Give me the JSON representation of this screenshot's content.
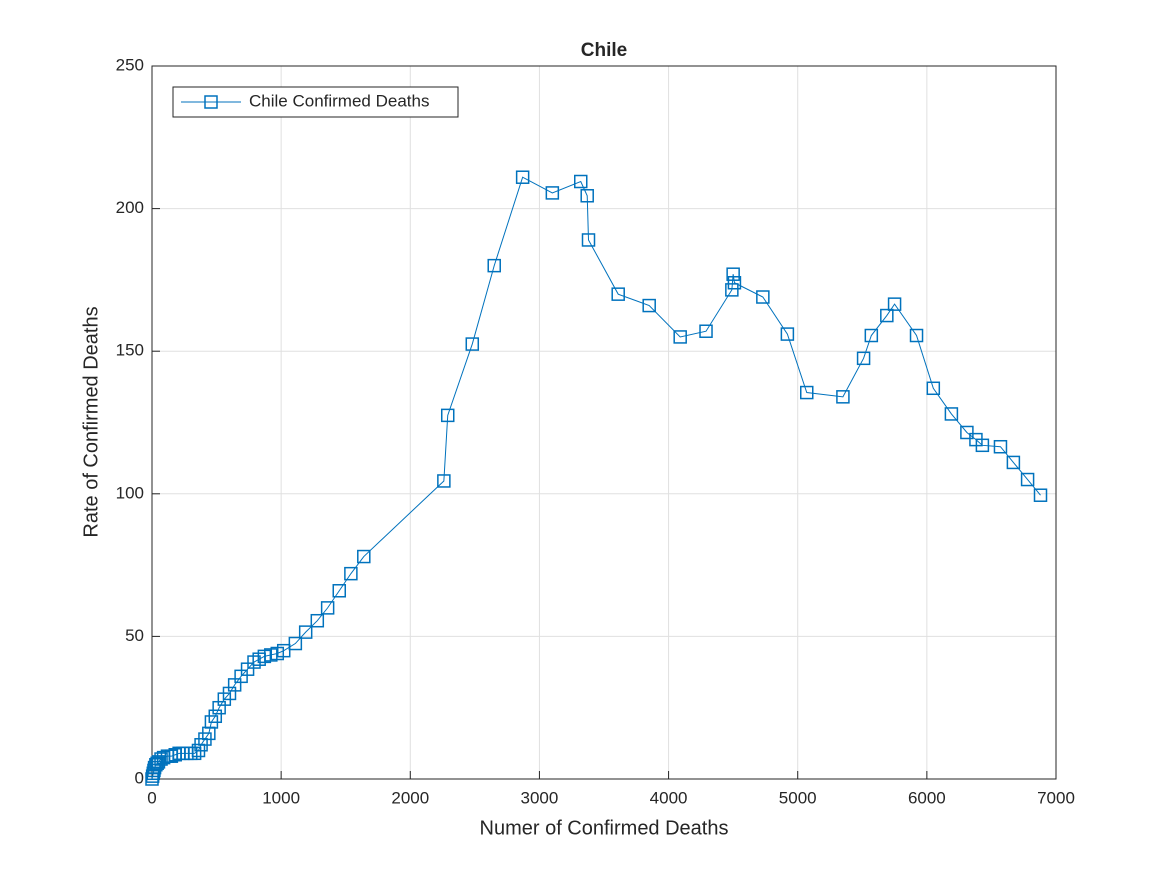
{
  "chart_data": {
    "type": "line",
    "title": "Chile",
    "x_label": "Numer of Confirmed Deaths",
    "y_label": "Rate of Confirmed Deaths",
    "xlim": [
      0,
      7000
    ],
    "xticks": [
      0,
      1000,
      2000,
      3000,
      4000,
      5000,
      6000,
      7000
    ],
    "ylim": [
      0,
      250
    ],
    "yticks": [
      0,
      50,
      100,
      150,
      200,
      250
    ],
    "grid": true,
    "legend": "top-left",
    "series": [
      {
        "name": "Chile Confirmed Deaths",
        "color": "#0072bd",
        "x": [
          0,
          5,
          10,
          15,
          20,
          30,
          40,
          50,
          70,
          90,
          120,
          150,
          180,
          210,
          240,
          270,
          300,
          330,
          360,
          380,
          410,
          440,
          460,
          490,
          520,
          560,
          600,
          640,
          690,
          740,
          790,
          830,
          870,
          920,
          970,
          1020,
          1110,
          1190,
          1280,
          1360,
          1450,
          1540,
          1640,
          2260,
          2290,
          2480,
          2650,
          2870,
          3100,
          3320,
          3370,
          3380,
          3610,
          3850,
          4090,
          4290,
          4490,
          4500,
          4510,
          4730,
          4920,
          5070,
          5350,
          5510,
          5570,
          5690,
          5750,
          5920,
          6050,
          6190,
          6310,
          6380,
          6430,
          6570,
          6670,
          6780,
          6880
        ],
        "values": [
          0,
          1,
          2,
          3,
          4,
          5,
          5.5,
          6,
          7,
          7.5,
          8,
          8,
          8.5,
          9,
          9,
          9,
          9,
          9,
          10,
          12,
          14,
          16,
          20,
          22,
          25,
          28,
          30,
          33,
          36,
          38.5,
          41,
          42,
          43,
          43.5,
          44,
          45,
          47.5,
          51.5,
          55.5,
          60,
          66,
          72,
          78,
          104.5,
          127.5,
          152.5,
          180,
          211,
          205.5,
          209.5,
          204.5,
          189,
          170,
          166,
          155,
          157,
          171.5,
          177,
          174,
          169,
          156,
          135.5,
          134,
          147.5,
          155.5,
          162.5,
          166.5,
          155.5,
          137,
          128,
          121.5,
          119,
          117,
          116.5,
          111,
          105,
          99.5
        ]
      }
    ]
  }
}
